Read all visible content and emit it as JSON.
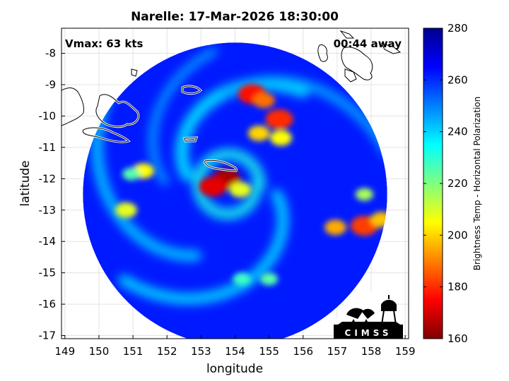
{
  "chart_data": {
    "type": "heatmap",
    "title": "Narelle: 17-Mar-2026 18:30:00",
    "annotations": {
      "vmax": "Vmax: 63 kts",
      "time_away": "00:44 away"
    },
    "xlabel": "longitude",
    "ylabel": "latitude",
    "xlim": [
      148.9,
      159.1
    ],
    "ylim": [
      -17.1,
      -7.2
    ],
    "xticks": [
      149,
      150,
      151,
      152,
      153,
      154,
      155,
      156,
      157,
      158,
      159
    ],
    "yticks": [
      -8,
      -9,
      -10,
      -11,
      -12,
      -13,
      -14,
      -15,
      -16,
      -17
    ],
    "grid": true,
    "colorbar": {
      "label": "Brightness Temp - Horizontal Polarization",
      "range": [
        160,
        280
      ],
      "ticks": [
        280,
        260,
        240,
        220,
        200,
        180,
        160
      ],
      "colormap": "jet",
      "colors": [
        "#7f0000",
        "#ff0000",
        "#ff8000",
        "#ffff00",
        "#80ff80",
        "#00ffff",
        "#0080ff",
        "#0000ff",
        "#00008f"
      ]
    },
    "storm_center": {
      "lon": 153.8,
      "lat": -12.2
    },
    "swath": {
      "shape": "circle",
      "center_lon": 154.0,
      "center_lat": -12.5,
      "radius_deg": 4.65,
      "background_tb": 262
    },
    "cold_features": [
      {
        "lon": 153.75,
        "lat": -12.0,
        "tb": 165
      },
      {
        "lon": 153.35,
        "lat": -12.25,
        "tb": 172
      },
      {
        "lon": 154.15,
        "lat": -12.35,
        "tb": 208
      },
      {
        "lon": 154.5,
        "lat": -9.3,
        "tb": 176
      },
      {
        "lon": 154.85,
        "lat": -9.5,
        "tb": 188
      },
      {
        "lon": 155.3,
        "lat": -10.1,
        "tb": 180
      },
      {
        "lon": 154.7,
        "lat": -10.55,
        "tb": 200
      },
      {
        "lon": 155.35,
        "lat": -10.7,
        "tb": 205
      },
      {
        "lon": 157.8,
        "lat": -13.5,
        "tb": 182
      },
      {
        "lon": 156.95,
        "lat": -13.55,
        "tb": 195
      },
      {
        "lon": 158.3,
        "lat": -13.3,
        "tb": 198
      },
      {
        "lon": 157.8,
        "lat": -12.5,
        "tb": 215
      },
      {
        "lon": 150.8,
        "lat": -13.0,
        "tb": 208
      },
      {
        "lon": 151.3,
        "lat": -11.75,
        "tb": 205
      },
      {
        "lon": 150.95,
        "lat": -11.85,
        "tb": 225
      },
      {
        "lon": 154.2,
        "lat": -15.2,
        "tb": 228
      },
      {
        "lon": 155.0,
        "lat": -15.2,
        "tb": 225
      }
    ],
    "logo_text": "CIMSS"
  }
}
